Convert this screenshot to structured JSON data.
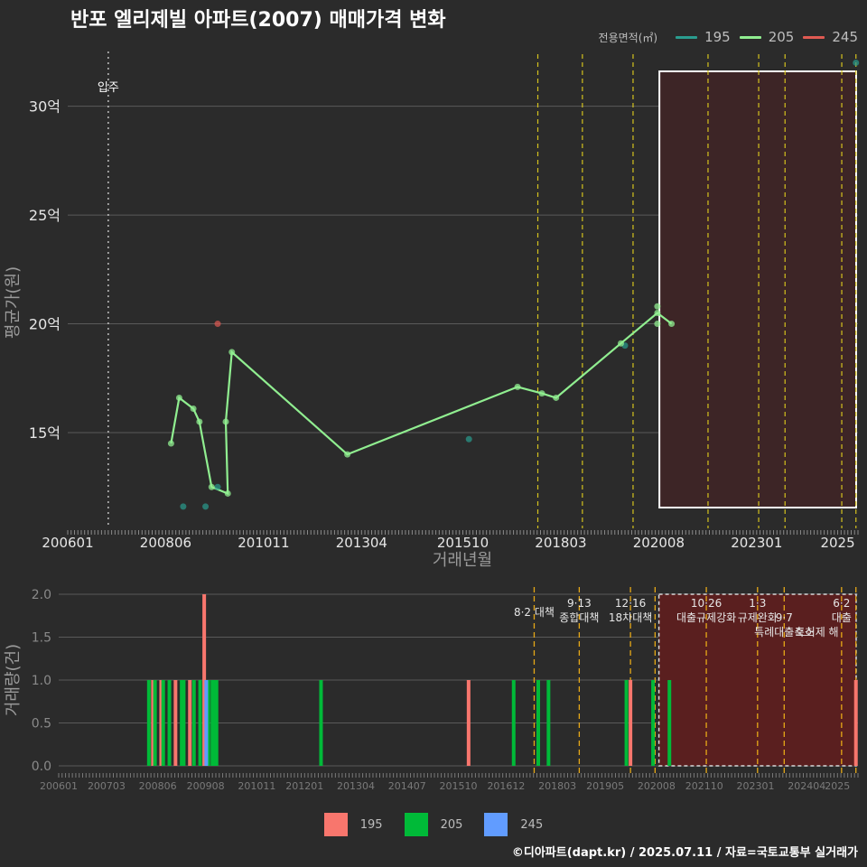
{
  "chart_data": {
    "type": "line",
    "title": "반포 엘리제빌 아파트(2007) 매매가격 변화",
    "xlabel": "거래년월",
    "ylabel": "평균가(원)",
    "volume_ylabel": "거래량(건)",
    "legend_top_title": "전용면적(㎡)",
    "x_ticks": [
      "200601",
      "200806",
      "201011",
      "201304",
      "201510",
      "201803",
      "202008",
      "202301",
      "2025"
    ],
    "y_ticks": [
      15,
      20,
      25,
      30
    ],
    "y_tick_labels": [
      "15억",
      "20억",
      "25억",
      "30억"
    ],
    "ylim": [
      10.6,
      32.6
    ],
    "xlim": [
      2006.0,
      2025.5
    ],
    "move_in": {
      "label": "입주",
      "x": 2007.0
    },
    "price_series": [
      {
        "name": "195",
        "color": "#2a9d8f",
        "line": false,
        "points": [
          [
            2008.85,
            11.6
          ],
          [
            2009.4,
            11.6
          ],
          [
            2009.7,
            12.5
          ],
          [
            2015.9,
            14.7
          ],
          [
            2019.75,
            19.0
          ],
          [
            2025.45,
            32.0
          ]
        ]
      },
      {
        "name": "205",
        "color": "#90ee90",
        "line": true,
        "points": [
          [
            2008.55,
            14.5
          ],
          [
            2008.75,
            16.6
          ],
          [
            2009.1,
            16.1
          ],
          [
            2009.25,
            15.5
          ],
          [
            2009.55,
            12.5
          ],
          [
            2009.95,
            12.2
          ],
          [
            2009.9,
            15.5
          ],
          [
            2010.05,
            18.7
          ],
          [
            2012.9,
            14.0
          ],
          [
            2017.1,
            17.1
          ],
          [
            2017.7,
            16.8
          ],
          [
            2018.05,
            16.6
          ],
          [
            2019.65,
            19.1
          ],
          [
            2020.55,
            20.5
          ],
          [
            2020.9,
            20.0
          ]
        ],
        "extra_points": [
          [
            2020.55,
            20.8
          ],
          [
            2020.55,
            20.0
          ]
        ]
      },
      {
        "name": "245",
        "color": "#e05a52",
        "line": false,
        "points": [
          [
            2009.7,
            20.0
          ]
        ]
      }
    ],
    "policy_lines_top": [
      2017.6,
      2018.7,
      2019.95,
      2021.8,
      2023.05,
      2023.7,
      2025.1,
      2025.45
    ],
    "shaded_region": {
      "x0": 2020.6,
      "x1": 2025.5
    },
    "volume_x_ticks": [
      "200601",
      "200703",
      "200806",
      "200908",
      "201011",
      "201201",
      "201304",
      "201407",
      "201510",
      "201612",
      "201803",
      "201905",
      "202008",
      "202110",
      "202301",
      "202404",
      "2025"
    ],
    "volume_y_ticks": [
      0.0,
      0.5,
      1.0,
      1.5,
      2.0
    ],
    "volume_ylim": [
      0,
      2.0
    ],
    "volume_series": [
      {
        "name": "195",
        "color": "#f8766d",
        "bars": [
          [
            2008.3,
            1
          ],
          [
            2008.5,
            1
          ],
          [
            2008.85,
            1
          ],
          [
            2009.2,
            1
          ],
          [
            2009.55,
            2
          ],
          [
            2016.0,
            1
          ],
          [
            2019.95,
            1
          ],
          [
            2025.45,
            1
          ]
        ]
      },
      {
        "name": "205",
        "color": "#00ba38",
        "bars": [
          [
            2008.2,
            1
          ],
          [
            2008.35,
            1
          ],
          [
            2008.55,
            1
          ],
          [
            2008.7,
            1
          ],
          [
            2009.0,
            1
          ],
          [
            2009.05,
            1
          ],
          [
            2009.3,
            1
          ],
          [
            2009.45,
            1
          ],
          [
            2009.65,
            1
          ],
          [
            2009.75,
            1
          ],
          [
            2009.8,
            1
          ],
          [
            2009.85,
            1
          ],
          [
            2012.4,
            1
          ],
          [
            2017.1,
            1
          ],
          [
            2017.7,
            1
          ],
          [
            2017.95,
            1
          ],
          [
            2019.85,
            1
          ],
          [
            2020.5,
            1
          ],
          [
            2020.9,
            1
          ]
        ]
      },
      {
        "name": "245",
        "color": "#619cff",
        "bars": [
          [
            2009.6,
            1
          ]
        ]
      }
    ],
    "policy_labels": [
      {
        "x": 2017.6,
        "lines": [
          "8·2 대책"
        ]
      },
      {
        "x": 2018.7,
        "lines": [
          "9·13",
          "종합대책"
        ]
      },
      {
        "x": 2019.95,
        "lines": [
          "12·16",
          "18차대책"
        ]
      },
      {
        "x": 2021.8,
        "lines": [
          "10·26",
          "대출규제강화"
        ]
      },
      {
        "x": 2023.05,
        "lines": [
          "1·3",
          "규제완화"
        ]
      },
      {
        "x": 2023.7,
        "lines": [
          "",
          "9·7",
          "특례대출축소"
        ]
      },
      {
        "x": 2024.5,
        "lines": [
          "",
          "",
          "토허제 해"
        ]
      },
      {
        "x": 2025.1,
        "lines": [
          "6·2",
          "대출"
        ]
      }
    ],
    "source": "©디아파트(dapt.kr) / 2025.07.11 / 자료=국토교통부 실거래가"
  }
}
